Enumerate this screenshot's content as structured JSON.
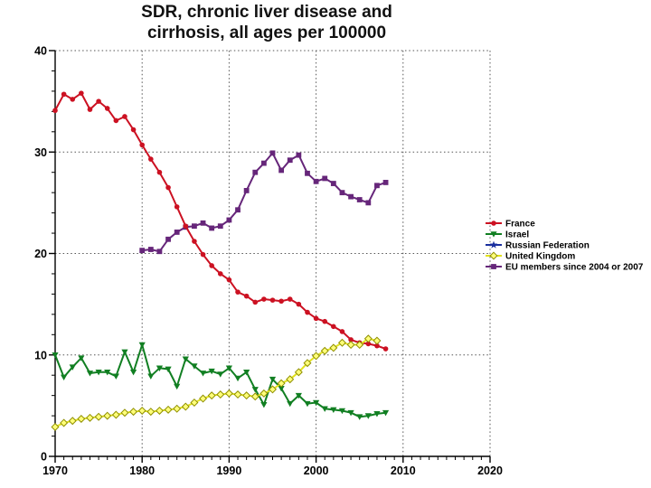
{
  "chart_data": {
    "type": "line",
    "title": "SDR, chronic liver disease and cirrhosis, all ages per 100000",
    "title_lines": [
      "SDR, chronic liver disease and",
      "cirrhosis, all ages per 100000"
    ],
    "xlabel": "",
    "ylabel": "",
    "xlim": [
      1970,
      2020
    ],
    "ylim": [
      0,
      40
    ],
    "x_ticks": [
      1970,
      1980,
      1990,
      2000,
      2010,
      2020
    ],
    "y_ticks": [
      0,
      10,
      20,
      30,
      40
    ],
    "x_minor_step": 1,
    "y_minor_step": 2,
    "grid": "dotted lines at every major tick, horizontal and vertical",
    "legend_position": "right-center, outside plot",
    "grid_color": "#555555",
    "axis_color": "#000000",
    "series": [
      {
        "name": "France",
        "color": "#cc1122",
        "marker": "circle",
        "years": [
          1970,
          1971,
          1972,
          1973,
          1974,
          1975,
          1976,
          1977,
          1978,
          1979,
          1980,
          1981,
          1982,
          1983,
          1984,
          1985,
          1986,
          1987,
          1988,
          1989,
          1990,
          1991,
          1992,
          1993,
          1994,
          1995,
          1996,
          1997,
          1998,
          1999,
          2000,
          2001,
          2002,
          2003,
          2004,
          2005,
          2006,
          2007,
          2008
        ],
        "values": [
          34.1,
          35.7,
          35.2,
          35.8,
          34.2,
          35.0,
          34.3,
          33.1,
          33.5,
          32.2,
          30.7,
          29.3,
          28.0,
          26.5,
          24.6,
          22.7,
          21.2,
          19.9,
          18.8,
          18.0,
          17.4,
          16.2,
          15.8,
          15.2,
          15.5,
          15.4,
          15.3,
          15.5,
          15.0,
          14.2,
          13.6,
          13.3,
          12.8,
          12.3,
          11.5,
          11.2,
          11.1,
          10.9,
          10.6
        ]
      },
      {
        "name": "Israel",
        "color": "#117f22",
        "marker": "triangle-down",
        "years": [
          1970,
          1971,
          1972,
          1973,
          1974,
          1975,
          1976,
          1977,
          1978,
          1979,
          1980,
          1981,
          1982,
          1983,
          1984,
          1985,
          1986,
          1987,
          1988,
          1989,
          1990,
          1991,
          1992,
          1993,
          1994,
          1995,
          1996,
          1997,
          1998,
          1999,
          2000,
          2001,
          2002,
          2003,
          2004,
          2005,
          2006,
          2007,
          2008
        ],
        "values": [
          10.0,
          7.8,
          8.8,
          9.7,
          8.2,
          8.3,
          8.3,
          7.9,
          10.3,
          8.3,
          11.0,
          7.9,
          8.7,
          8.6,
          6.9,
          9.6,
          8.9,
          8.2,
          8.4,
          8.1,
          8.7,
          7.7,
          8.3,
          6.6,
          5.1,
          7.6,
          6.7,
          5.2,
          6.0,
          5.2,
          5.3,
          4.7,
          4.6,
          4.5,
          4.3,
          3.9,
          4.0,
          4.2,
          4.3
        ]
      },
      {
        "name": "Russian Federation",
        "color": "#1a2f9e",
        "marker": "star",
        "years": [],
        "values": []
      },
      {
        "name": "United Kingdom",
        "color": "#e2e21e",
        "marker": "diamond-open",
        "marker_fill": "#ffff7a",
        "marker_stroke": "#8f8f00",
        "years": [
          1970,
          1971,
          1972,
          1973,
          1974,
          1975,
          1976,
          1977,
          1978,
          1979,
          1980,
          1981,
          1982,
          1983,
          1984,
          1985,
          1986,
          1987,
          1988,
          1989,
          1990,
          1991,
          1992,
          1993,
          1994,
          1995,
          1996,
          1997,
          1998,
          1999,
          2000,
          2001,
          2002,
          2003,
          2004,
          2005,
          2006,
          2007
        ],
        "values": [
          2.9,
          3.3,
          3.5,
          3.7,
          3.8,
          3.9,
          4.0,
          4.1,
          4.3,
          4.4,
          4.5,
          4.4,
          4.5,
          4.6,
          4.7,
          4.9,
          5.3,
          5.7,
          6.0,
          6.1,
          6.2,
          6.1,
          6.0,
          5.9,
          6.2,
          6.6,
          7.2,
          7.6,
          8.3,
          9.2,
          9.9,
          10.4,
          10.7,
          11.2,
          11.0,
          11.0,
          11.6,
          11.4
        ]
      },
      {
        "name": "EU members since 2004 or 2007",
        "color": "#66267a",
        "marker": "square",
        "years": [
          1980,
          1981,
          1982,
          1983,
          1984,
          1985,
          1986,
          1987,
          1988,
          1989,
          1990,
          1991,
          1992,
          1993,
          1994,
          1995,
          1996,
          1997,
          1998,
          1999,
          2000,
          2001,
          2002,
          2003,
          2004,
          2005,
          2006,
          2007,
          2008
        ],
        "values": [
          20.3,
          20.4,
          20.2,
          21.4,
          22.1,
          22.6,
          22.7,
          23.0,
          22.5,
          22.7,
          23.3,
          24.3,
          26.2,
          28.0,
          28.9,
          29.9,
          28.2,
          29.2,
          29.7,
          27.9,
          27.1,
          27.4,
          26.9,
          26.0,
          25.6,
          25.3,
          25.0,
          26.7,
          27.0
        ]
      }
    ]
  }
}
